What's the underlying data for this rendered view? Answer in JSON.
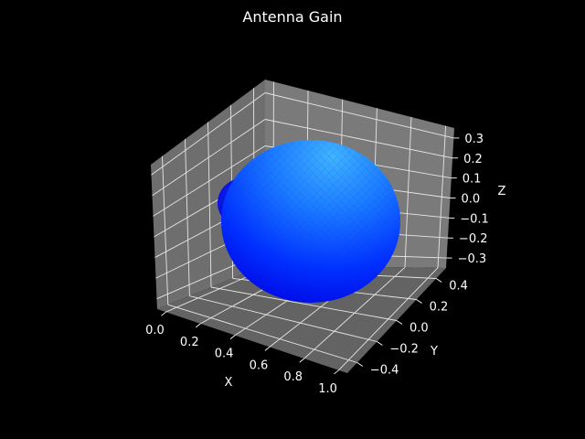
{
  "chart_data": {
    "type": "surface3d",
    "title": "Antenna Gain",
    "xlabel": "X",
    "ylabel": "Y",
    "zlabel": "Z",
    "x_ticks": [
      "0.0",
      "0.2",
      "0.4",
      "0.6",
      "0.8",
      "1.0"
    ],
    "y_ticks": [
      "−0.4",
      "−0.2",
      "0.0",
      "0.2",
      "0.4"
    ],
    "z_ticks": [
      "−0.3",
      "−0.2",
      "−0.1",
      "0.0",
      "0.1",
      "0.2",
      "0.3"
    ],
    "xlim": [
      -0.05,
      1.05
    ],
    "ylim": [
      -0.5,
      0.5
    ],
    "zlim": [
      -0.35,
      0.35
    ],
    "grid": true,
    "surface": {
      "shape": "sphere",
      "center": [
        0.5,
        0.0,
        0.0
      ],
      "radius": 0.5,
      "colormap": "blue-cyan"
    },
    "colors": {
      "background": "#000000",
      "pane": "#6e6e6e",
      "grid": "#e6e6e6",
      "surface_dark": "#0000ff",
      "surface_light": "#3fa0ff"
    }
  }
}
